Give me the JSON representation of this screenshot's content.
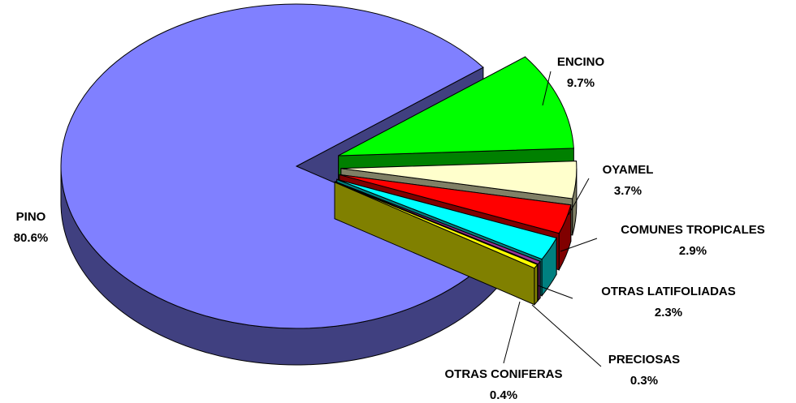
{
  "chart_data": {
    "type": "pie",
    "categories": [
      "PINO",
      "ENCINO",
      "OYAMEL",
      "COMUNES TROPICALES",
      "OTRAS LATIFOLIADAS",
      "PRECIOSAS",
      "OTRAS CONIFERAS"
    ],
    "values": [
      80.6,
      9.7,
      3.7,
      2.9,
      2.3,
      0.3,
      0.4
    ],
    "value_labels": [
      "80.6%",
      "9.7%",
      "3.7%",
      "2.9%",
      "2.3%",
      "0.3%",
      "0.4%"
    ],
    "colors": [
      "#8080ff",
      "#00ff00",
      "#ffffcc",
      "#ff0000",
      "#00ffff",
      "#993399",
      "#ffff00"
    ]
  }
}
